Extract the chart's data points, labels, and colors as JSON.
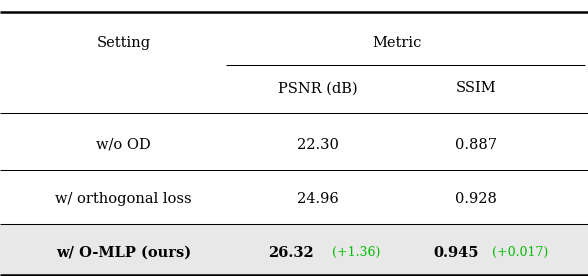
{
  "col_header_level1": "Metric",
  "col_header_level2": [
    "PSNR (dB)",
    "SSIM"
  ],
  "row_header": "Setting",
  "rows": [
    {
      "setting": "w/o OD",
      "psnr": "22.30",
      "ssim": "0.887",
      "bold": false,
      "highlight": false,
      "psnr_delta": null,
      "ssim_delta": null
    },
    {
      "setting": "w/ orthogonal loss",
      "psnr": "24.96",
      "ssim": "0.928",
      "bold": false,
      "highlight": false,
      "psnr_delta": null,
      "ssim_delta": null
    },
    {
      "setting": "w/ O-MLP (ours)",
      "psnr": "26.32",
      "ssim": "0.945",
      "bold": true,
      "highlight": true,
      "psnr_delta": "+1.36",
      "ssim_delta": "+0.017"
    }
  ],
  "highlight_color": "#e8e8e8",
  "green_color": "#00bb00",
  "background_color": "#ffffff",
  "font_size": 10.5
}
